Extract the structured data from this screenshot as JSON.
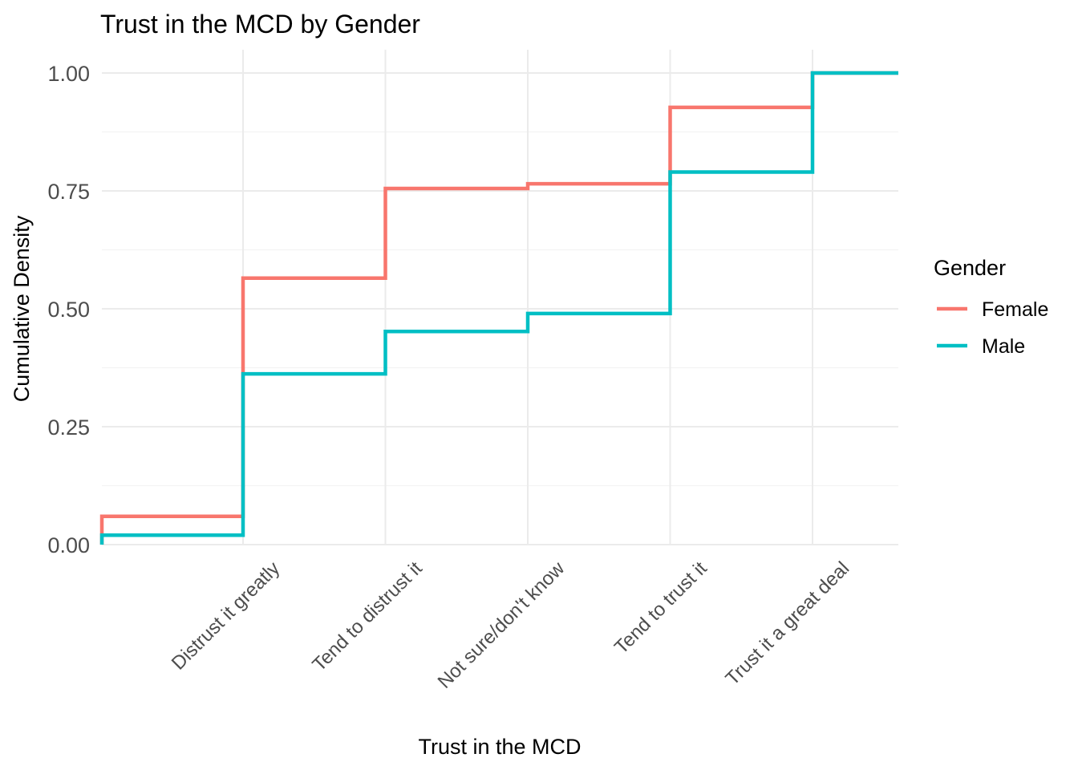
{
  "chart_data": {
    "type": "line",
    "step": true,
    "title": "Trust in the MCD by Gender",
    "xlabel": "Trust in the MCD",
    "ylabel": "Cumulative Density",
    "categories": [
      "Distrust it greatly",
      "Tend to distrust it",
      "Not sure/don't know",
      "Tend to trust it",
      "Trust it a great deal"
    ],
    "ylim": [
      0,
      1
    ],
    "yticks": [
      "0.00",
      "0.25",
      "0.50",
      "0.75",
      "1.00"
    ],
    "grid": true,
    "legend": {
      "title": "Gender",
      "position": "right"
    },
    "series": [
      {
        "name": "Female",
        "color": "#F8766D",
        "start": 0.06,
        "values": [
          0.565,
          0.755,
          0.765,
          0.927,
          1.0
        ]
      },
      {
        "name": "Male",
        "color": "#00BFC4",
        "start": 0.02,
        "values": [
          0.362,
          0.452,
          0.49,
          0.79,
          1.0
        ]
      }
    ]
  }
}
